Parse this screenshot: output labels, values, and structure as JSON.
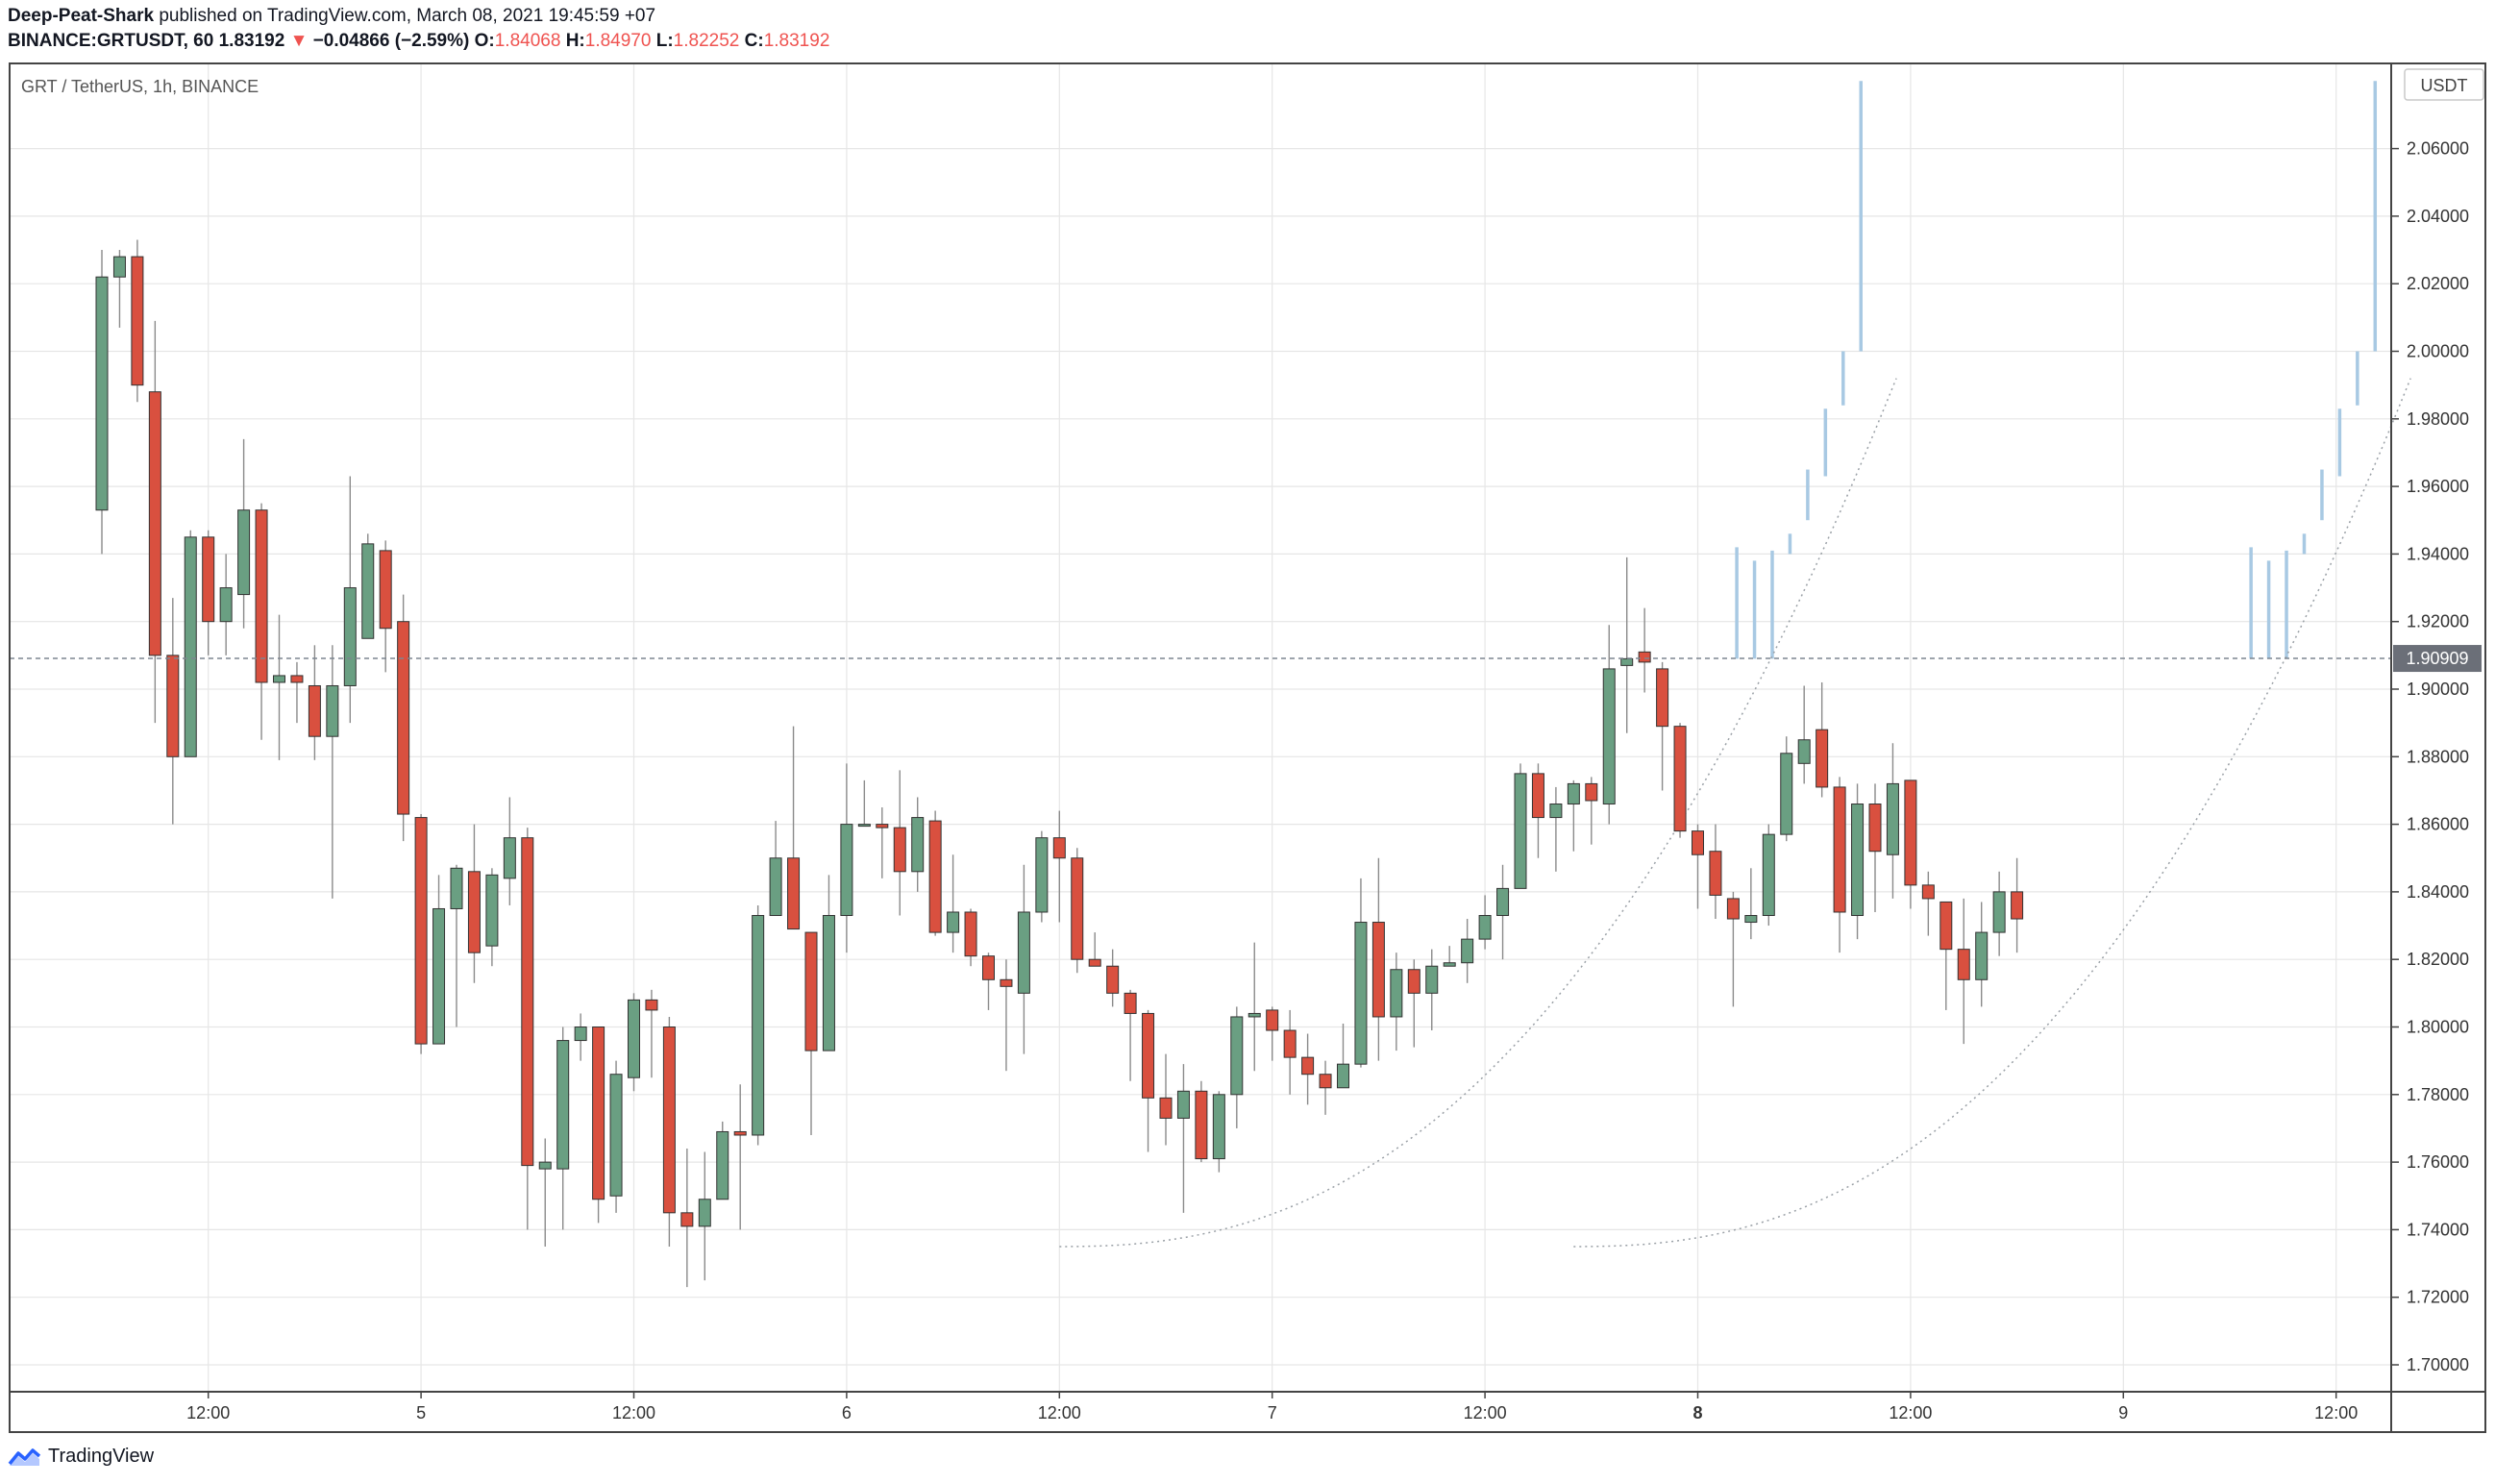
{
  "header": {
    "author": "Deep-Peat-Shark",
    "published": "published on TradingView.com, March 08, 2021 19:45:59 +07",
    "symbol": "BINANCE:GRTUSDT, 60",
    "last": "1.83192",
    "arrow": "▼",
    "change": "−0.04866 (−2.59%)",
    "o_label": "O:",
    "o_value": "1.84068",
    "h_label": "H:",
    "h_value": "1.84970",
    "l_label": "L:",
    "l_value": "1.82252",
    "c_label": "C:",
    "c_value": "1.83192"
  },
  "footer": {
    "brand": "TradingView"
  },
  "colors": {
    "up": "#6a9f82",
    "down": "#d9503f",
    "projection": "#a8c9e3",
    "grid": "#e6e6e6"
  },
  "chart_data": {
    "type": "candlestick",
    "title": "GRT / TetherUS, 1h, BINANCE",
    "currency_label": "USDT",
    "price_line": {
      "value": 1.90909,
      "label": "1.90909"
    },
    "ylim": [
      1.69,
      2.08
    ],
    "yticks": [
      "1.70000",
      "1.72000",
      "1.74000",
      "1.76000",
      "1.78000",
      "1.80000",
      "1.82000",
      "1.84000",
      "1.86000",
      "1.88000",
      "1.90000",
      "1.92000",
      "1.94000",
      "1.96000",
      "1.98000",
      "2.00000",
      "2.02000",
      "2.04000",
      "2.06000"
    ],
    "xlim": [
      0,
      150
    ],
    "xticks": [
      {
        "x": 6,
        "label": "12:00"
      },
      {
        "x": 18,
        "label": "5"
      },
      {
        "x": 30,
        "label": "12:00"
      },
      {
        "x": 42,
        "label": "6"
      },
      {
        "x": 54,
        "label": "12:00"
      },
      {
        "x": 66,
        "label": "7"
      },
      {
        "x": 78,
        "label": "12:00"
      },
      {
        "x": 90,
        "label": "8",
        "bold": true
      },
      {
        "x": 102,
        "label": "12:00"
      },
      {
        "x": 114,
        "label": "9"
      },
      {
        "x": 126,
        "label": "12:00"
      }
    ],
    "candles": [
      [
        1.953,
        2.022,
        1.94,
        2.03
      ],
      [
        2.022,
        2.028,
        2.007,
        2.03
      ],
      [
        2.028,
        1.99,
        1.985,
        2.033
      ],
      [
        1.988,
        1.91,
        1.89,
        2.009
      ],
      [
        1.91,
        1.88,
        1.86,
        1.927
      ],
      [
        1.88,
        1.945,
        1.88,
        1.947
      ],
      [
        1.945,
        1.92,
        1.91,
        1.947
      ],
      [
        1.92,
        1.93,
        1.91,
        1.94
      ],
      [
        1.928,
        1.953,
        1.918,
        1.974
      ],
      [
        1.953,
        1.902,
        1.885,
        1.955
      ],
      [
        1.902,
        1.904,
        1.879,
        1.922
      ],
      [
        1.904,
        1.902,
        1.89,
        1.908
      ],
      [
        1.901,
        1.886,
        1.879,
        1.913
      ],
      [
        1.886,
        1.901,
        1.838,
        1.913
      ],
      [
        1.901,
        1.93,
        1.89,
        1.963
      ],
      [
        1.915,
        1.943,
        1.915,
        1.946
      ],
      [
        1.941,
        1.918,
        1.905,
        1.944
      ],
      [
        1.92,
        1.863,
        1.855,
        1.928
      ],
      [
        1.862,
        1.795,
        1.792,
        1.863
      ],
      [
        1.795,
        1.835,
        1.795,
        1.845
      ],
      [
        1.835,
        1.847,
        1.8,
        1.848
      ],
      [
        1.846,
        1.822,
        1.813,
        1.86
      ],
      [
        1.824,
        1.845,
        1.818,
        1.847
      ],
      [
        1.844,
        1.856,
        1.836,
        1.868
      ],
      [
        1.856,
        1.759,
        1.74,
        1.859
      ],
      [
        1.758,
        1.76,
        1.735,
        1.767
      ],
      [
        1.758,
        1.796,
        1.74,
        1.8
      ],
      [
        1.796,
        1.8,
        1.79,
        1.804
      ],
      [
        1.8,
        1.749,
        1.742,
        1.8
      ],
      [
        1.75,
        1.786,
        1.745,
        1.79
      ],
      [
        1.785,
        1.808,
        1.781,
        1.81
      ],
      [
        1.808,
        1.805,
        1.785,
        1.811
      ],
      [
        1.8,
        1.745,
        1.735,
        1.803
      ],
      [
        1.745,
        1.741,
        1.723,
        1.764
      ],
      [
        1.741,
        1.749,
        1.725,
        1.763
      ],
      [
        1.749,
        1.769,
        1.749,
        1.772
      ],
      [
        1.769,
        1.768,
        1.74,
        1.783
      ],
      [
        1.768,
        1.833,
        1.765,
        1.836
      ],
      [
        1.833,
        1.85,
        1.833,
        1.861
      ],
      [
        1.85,
        1.829,
        1.829,
        1.889
      ],
      [
        1.828,
        1.793,
        1.768,
        1.828
      ],
      [
        1.793,
        1.833,
        1.793,
        1.845
      ],
      [
        1.833,
        1.86,
        1.822,
        1.878
      ],
      [
        1.86,
        1.86,
        1.86,
        1.873
      ],
      [
        1.86,
        1.859,
        1.844,
        1.865
      ],
      [
        1.859,
        1.846,
        1.833,
        1.876
      ],
      [
        1.846,
        1.862,
        1.84,
        1.868
      ],
      [
        1.861,
        1.828,
        1.827,
        1.864
      ],
      [
        1.828,
        1.834,
        1.822,
        1.851
      ],
      [
        1.834,
        1.821,
        1.818,
        1.835
      ],
      [
        1.821,
        1.814,
        1.805,
        1.822
      ],
      [
        1.814,
        1.812,
        1.787,
        1.82
      ],
      [
        1.81,
        1.834,
        1.792,
        1.848
      ],
      [
        1.834,
        1.856,
        1.831,
        1.858
      ],
      [
        1.856,
        1.85,
        1.831,
        1.864
      ],
      [
        1.85,
        1.82,
        1.816,
        1.853
      ],
      [
        1.82,
        1.818,
        1.818,
        1.828
      ],
      [
        1.818,
        1.81,
        1.806,
        1.823
      ],
      [
        1.81,
        1.804,
        1.784,
        1.811
      ],
      [
        1.804,
        1.779,
        1.763,
        1.805
      ],
      [
        1.779,
        1.773,
        1.765,
        1.792
      ],
      [
        1.773,
        1.781,
        1.745,
        1.789
      ],
      [
        1.781,
        1.761,
        1.76,
        1.784
      ],
      [
        1.761,
        1.78,
        1.757,
        1.781
      ],
      [
        1.78,
        1.803,
        1.77,
        1.806
      ],
      [
        1.803,
        1.804,
        1.787,
        1.825
      ],
      [
        1.805,
        1.799,
        1.79,
        1.806
      ],
      [
        1.799,
        1.791,
        1.78,
        1.805
      ],
      [
        1.791,
        1.786,
        1.777,
        1.798
      ],
      [
        1.786,
        1.782,
        1.774,
        1.79
      ],
      [
        1.782,
        1.789,
        1.783,
        1.801
      ],
      [
        1.789,
        1.831,
        1.788,
        1.844
      ],
      [
        1.831,
        1.803,
        1.79,
        1.85
      ],
      [
        1.803,
        1.817,
        1.793,
        1.822
      ],
      [
        1.817,
        1.81,
        1.794,
        1.82
      ],
      [
        1.81,
        1.818,
        1.799,
        1.823
      ],
      [
        1.818,
        1.819,
        1.818,
        1.824
      ],
      [
        1.819,
        1.826,
        1.813,
        1.832
      ],
      [
        1.826,
        1.833,
        1.823,
        1.839
      ],
      [
        1.833,
        1.841,
        1.82,
        1.848
      ],
      [
        1.841,
        1.875,
        1.841,
        1.878
      ],
      [
        1.875,
        1.862,
        1.85,
        1.878
      ],
      [
        1.862,
        1.866,
        1.846,
        1.871
      ],
      [
        1.866,
        1.872,
        1.852,
        1.873
      ],
      [
        1.872,
        1.867,
        1.854,
        1.874
      ],
      [
        1.866,
        1.906,
        1.86,
        1.919
      ],
      [
        1.907,
        1.909,
        1.887,
        1.939
      ],
      [
        1.911,
        1.908,
        1.899,
        1.924
      ],
      [
        1.906,
        1.889,
        1.87,
        1.908
      ],
      [
        1.889,
        1.858,
        1.856,
        1.89
      ],
      [
        1.858,
        1.851,
        1.835,
        1.86
      ],
      [
        1.852,
        1.839,
        1.832,
        1.86
      ],
      [
        1.838,
        1.832,
        1.806,
        1.84
      ],
      [
        1.831,
        1.833,
        1.826,
        1.847
      ],
      [
        1.833,
        1.857,
        1.83,
        1.86
      ],
      [
        1.857,
        1.881,
        1.855,
        1.886
      ],
      [
        1.878,
        1.885,
        1.872,
        1.901
      ],
      [
        1.888,
        1.871,
        1.868,
        1.902
      ],
      [
        1.871,
        1.834,
        1.822,
        1.874
      ],
      [
        1.833,
        1.866,
        1.826,
        1.872
      ],
      [
        1.866,
        1.852,
        1.834,
        1.872
      ],
      [
        1.851,
        1.872,
        1.838,
        1.884
      ],
      [
        1.873,
        1.842,
        1.835,
        1.872
      ],
      [
        1.842,
        1.838,
        1.827,
        1.846
      ],
      [
        1.837,
        1.823,
        1.805,
        1.837
      ],
      [
        1.823,
        1.814,
        1.795,
        1.838
      ],
      [
        1.814,
        1.828,
        1.806,
        1.837
      ],
      [
        1.828,
        1.84,
        1.821,
        1.846
      ],
      [
        1.84,
        1.832,
        1.822,
        1.85
      ]
    ],
    "projections": [
      {
        "x": 92.2,
        "values": [
          1.909,
          1.942
        ]
      },
      {
        "x": 93.2,
        "values": [
          1.909,
          1.938
        ]
      },
      {
        "x": 94.2,
        "values": [
          1.909,
          1.941
        ]
      },
      {
        "x": 95.2,
        "values": [
          1.94,
          1.946
        ]
      },
      {
        "x": 96.2,
        "values": [
          1.95,
          1.965
        ]
      },
      {
        "x": 97.2,
        "values": [
          1.963,
          1.983
        ]
      },
      {
        "x": 98.2,
        "values": [
          1.984,
          2.0
        ]
      },
      {
        "x": 99.2,
        "values": [
          2.0,
          2.08
        ]
      },
      {
        "x": 121.2,
        "values": [
          1.909,
          1.942
        ]
      },
      {
        "x": 122.2,
        "values": [
          1.909,
          1.938
        ]
      },
      {
        "x": 123.2,
        "values": [
          1.909,
          1.941
        ]
      },
      {
        "x": 124.2,
        "values": [
          1.94,
          1.946
        ]
      },
      {
        "x": 125.2,
        "values": [
          1.95,
          1.965
        ]
      },
      {
        "x": 126.2,
        "values": [
          1.963,
          1.983
        ]
      },
      {
        "x": 127.2,
        "values": [
          1.984,
          2.0
        ]
      },
      {
        "x": 128.2,
        "values": [
          2.0,
          2.08
        ]
      }
    ],
    "arcs": [
      {
        "x0": 54,
        "x1": 101.2,
        "y_start": 1.735,
        "y_end": 1.992
      },
      {
        "x0": 83,
        "x1": 130.2,
        "y_start": 1.735,
        "y_end": 1.992
      }
    ]
  }
}
